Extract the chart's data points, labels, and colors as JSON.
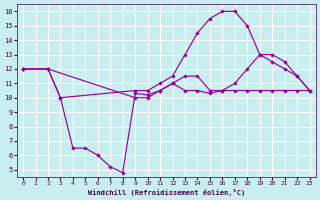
{
  "xlabel": "Windchill (Refroidissement éolien,°C)",
  "bg_color": "#c8eef0",
  "grid_color": "#ffffff",
  "line_color": "#990099",
  "xlim": [
    -0.5,
    23.5
  ],
  "ylim": [
    4.5,
    16.5
  ],
  "xticks": [
    0,
    1,
    2,
    3,
    4,
    5,
    6,
    7,
    8,
    9,
    10,
    11,
    12,
    13,
    14,
    15,
    16,
    17,
    18,
    19,
    20,
    21,
    22,
    23
  ],
  "yticks": [
    5,
    6,
    7,
    8,
    9,
    10,
    11,
    12,
    13,
    14,
    15,
    16
  ],
  "line1_x": [
    0,
    2,
    3,
    4,
    5,
    6,
    7,
    8,
    9,
    10,
    11,
    12,
    13,
    14,
    15,
    16,
    17,
    18,
    19,
    20,
    21,
    22,
    23
  ],
  "line1_y": [
    12,
    12,
    10,
    6.5,
    6.5,
    6,
    5.2,
    4.8,
    10.3,
    10.2,
    10.5,
    11,
    10.5,
    10.5,
    10.3,
    10.5,
    10.5,
    10.5,
    10.5,
    10.5,
    10.5,
    10.5,
    10.5
  ],
  "line2_x": [
    0,
    2,
    3,
    9,
    10,
    11,
    12,
    13,
    14,
    15,
    16,
    17,
    18,
    19,
    20,
    21,
    22,
    23
  ],
  "line2_y": [
    12,
    12,
    10,
    10.5,
    10.5,
    11,
    11.5,
    13,
    14.5,
    15.5,
    16,
    16,
    15,
    13,
    12.5,
    12,
    11.5,
    10.5
  ],
  "line3_x": [
    0,
    2,
    9,
    10,
    11,
    12,
    13,
    14,
    15,
    16,
    17,
    18,
    19,
    20,
    21,
    22,
    23
  ],
  "line3_y": [
    12,
    12,
    10,
    10,
    10.5,
    11,
    11.5,
    11.5,
    10.5,
    10.5,
    11,
    12,
    13,
    13,
    12.5,
    11.5,
    10.5
  ]
}
